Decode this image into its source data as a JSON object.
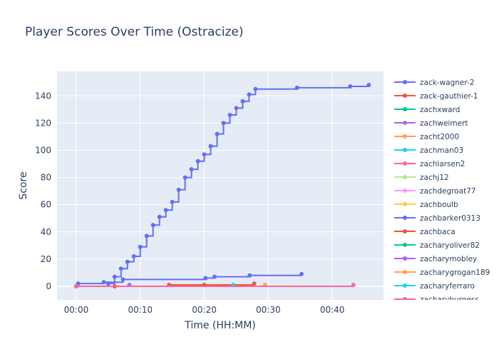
{
  "chart_data": {
    "type": "line",
    "title": "Player Scores Over Time (Ostracize)",
    "xlabel": "Time (HH:MM)",
    "ylabel": "Score",
    "x_unit": "minutes",
    "xlim": [
      -3,
      48
    ],
    "ylim": [
      -10,
      158
    ],
    "x_ticks": [
      0,
      10,
      20,
      30,
      40
    ],
    "x_tick_labels": [
      "00:00",
      "00:10",
      "00:20",
      "00:30",
      "00:40"
    ],
    "y_ticks": [
      0,
      20,
      40,
      60,
      80,
      100,
      120,
      140
    ],
    "y_tick_labels": [
      "0",
      "20",
      "40",
      "60",
      "80",
      "100",
      "120",
      "140"
    ],
    "grid": true,
    "legend_position": "right",
    "series": [
      {
        "name": "zack-wagner-2",
        "color": "#636efa",
        "x": [
          0,
          5,
          6,
          7,
          8,
          9,
          10,
          11,
          12,
          13,
          14,
          15,
          16,
          17,
          18,
          19,
          20,
          21,
          22,
          23,
          24,
          25,
          26,
          27,
          28,
          34.5,
          42.8,
          45.7
        ],
        "y": [
          0,
          2,
          7,
          13,
          18,
          22,
          29,
          37,
          45,
          51,
          56,
          62,
          71,
          80,
          86,
          92,
          97,
          103,
          112,
          120,
          126,
          131,
          136,
          141,
          145,
          146,
          147,
          148
        ]
      },
      {
        "name": "zack-gauthier-1",
        "color": "#ef553b",
        "x": [
          0,
          6,
          14.5,
          20,
          27.8
        ],
        "y": [
          0,
          0,
          1,
          1,
          2
        ]
      },
      {
        "name": "zachxward",
        "color": "#00cc96",
        "x": [
          0
        ],
        "y": [
          0
        ]
      },
      {
        "name": "zachweimert",
        "color": "#ab63fa",
        "x": [
          0,
          8.3
        ],
        "y": [
          0,
          1
        ]
      },
      {
        "name": "zacht2000",
        "color": "#ffa15a",
        "x": [
          0,
          29.5
        ],
        "y": [
          0,
          1
        ]
      },
      {
        "name": "zachman03",
        "color": "#19d3f3",
        "x": [
          0,
          24.5
        ],
        "y": [
          0,
          1
        ]
      },
      {
        "name": "zachlarsen2",
        "color": "#ff6692",
        "x": [
          0,
          43.3
        ],
        "y": [
          0,
          1
        ]
      },
      {
        "name": "zachj12",
        "color": "#b6e880",
        "x": [
          0
        ],
        "y": [
          0
        ]
      },
      {
        "name": "zachdegroat77",
        "color": "#ff97ff",
        "x": [
          0
        ],
        "y": [
          0
        ]
      },
      {
        "name": "zachboulb",
        "color": "#fecb52",
        "x": [
          0
        ],
        "y": [
          0
        ]
      },
      {
        "name": "zachbarker0313",
        "color": "#636efa",
        "x": [
          0.3,
          4.3,
          7.3,
          20.2,
          21.6,
          27.1,
          35.2
        ],
        "y": [
          2,
          3,
          5,
          6,
          7,
          8,
          9
        ]
      },
      {
        "name": "zachbaca",
        "color": "#ef553b",
        "x": [
          0
        ],
        "y": [
          0
        ]
      },
      {
        "name": "zacharyoliver82",
        "color": "#00cc96",
        "x": [
          0
        ],
        "y": [
          0
        ]
      },
      {
        "name": "zacharymobley",
        "color": "#ab63fa",
        "x": [
          0
        ],
        "y": [
          0
        ]
      },
      {
        "name": "zacharygrogan189",
        "color": "#ffa15a",
        "x": [
          0
        ],
        "y": [
          0
        ]
      },
      {
        "name": "zacharyferraro",
        "color": "#19d3f3",
        "x": [
          0
        ],
        "y": [
          0
        ]
      },
      {
        "name": "zacharyburgess",
        "color": "#ff6692",
        "x": [
          0
        ],
        "y": [
          0
        ]
      }
    ]
  }
}
